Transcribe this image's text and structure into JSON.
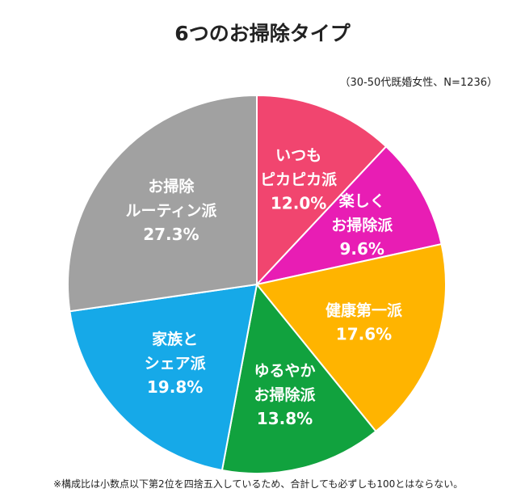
{
  "chart_data": {
    "type": "pie",
    "title": "6つのお掃除タイプ",
    "subtitle": "（30-50代既婚女性、N=1236）",
    "slices": [
      {
        "label_lines": [
          "いつも",
          "ピカピカ派"
        ],
        "value": 12.0,
        "value_label": "12.0%",
        "color": "#f1456f"
      },
      {
        "label_lines": [
          "楽しく",
          "お掃除派"
        ],
        "value": 9.6,
        "value_label": "9.6%",
        "color": "#e81db4"
      },
      {
        "label_lines": [
          "健康第一派"
        ],
        "value": 17.6,
        "value_label": "17.6%",
        "color": "#ffb400"
      },
      {
        "label_lines": [
          "ゆるやか",
          "お掃除派"
        ],
        "value": 13.8,
        "value_label": "13.8%",
        "color": "#11a23e"
      },
      {
        "label_lines": [
          "家族と",
          "シェア派"
        ],
        "value": 19.8,
        "value_label": "19.8%",
        "color": "#16a9e8"
      },
      {
        "label_lines": [
          "お掃除",
          "ルーティン派"
        ],
        "value": 27.3,
        "value_label": "27.3%",
        "color": "#a1a1a1"
      }
    ],
    "footnote": "※構成比は小数点以下第2位を四捨五入しているため、合計しても必ずしも100とはならない。"
  }
}
